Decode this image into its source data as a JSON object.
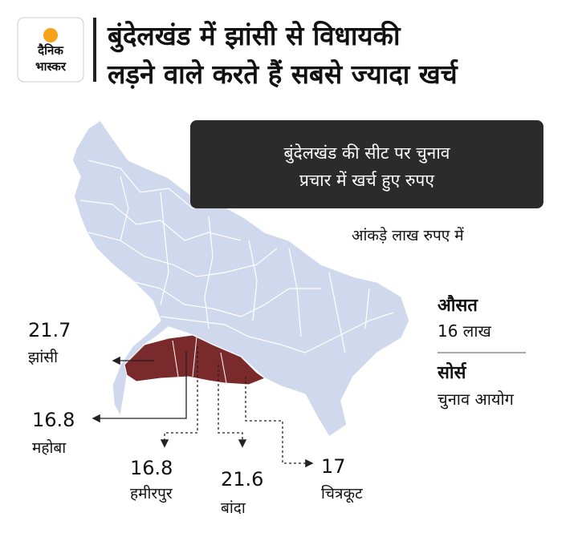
{
  "logo": {
    "line1": "दैनिक",
    "line2": "भास्कर"
  },
  "title": [
    "बुंदेलखंड में झांसी से विधायकी",
    "लड़ने वाले करते हैं सबसे ज्यादा खर्च"
  ],
  "subtitle": [
    "बुंदेलखंड की सीट पर चुनाव",
    "प्रचार में खर्च हुए रुपए"
  ],
  "unit_note": "आंकड़े लाख रुपए में",
  "districts": [
    {
      "name": "झांसी",
      "value": 21.7
    },
    {
      "name": "महोबा",
      "value": 16.8
    },
    {
      "name": "हमीरपुर",
      "value": 16.8
    },
    {
      "name": "बांदा",
      "value": 21.6
    },
    {
      "name": "चित्रकूट",
      "value": 17
    }
  ],
  "average": {
    "label": "औसत",
    "value": "16 लाख"
  },
  "source": {
    "label": "सोर्स",
    "value": "चुनाव आयोग"
  }
}
